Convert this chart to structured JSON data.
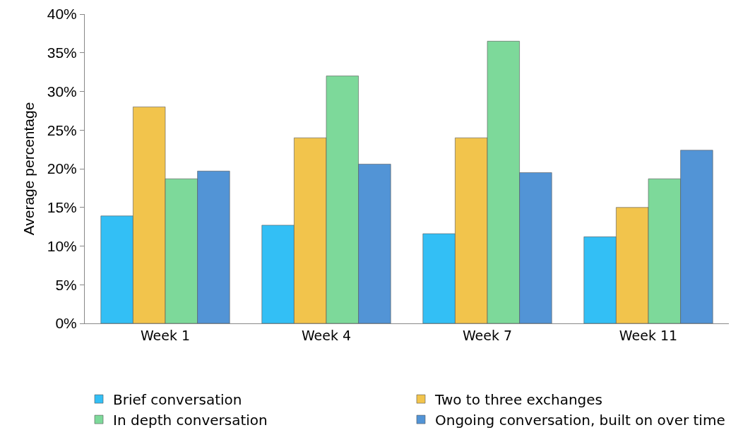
{
  "chart_data": {
    "type": "bar",
    "ylabel": "Average percentage",
    "categories": [
      "Week 1",
      "Week 4",
      "Week 7",
      "Week 11"
    ],
    "series": [
      {
        "name": "Brief conversation",
        "color": "#33bff5",
        "values": [
          13.9,
          12.7,
          11.6,
          11.2
        ]
      },
      {
        "name": "Two to three exchanges",
        "color": "#f2c44c",
        "values": [
          28,
          24,
          24,
          15
        ]
      },
      {
        "name": "In depth conversation",
        "color": "#7dd99a",
        "values": [
          18.7,
          32,
          36.5,
          18.7
        ]
      },
      {
        "name": "Ongoing conversation, built on over time",
        "color": "#5294d6",
        "values": [
          19.7,
          20.6,
          19.5,
          22.4
        ]
      }
    ],
    "ylim": [
      0,
      40
    ],
    "yticks": [
      {
        "value": 0,
        "label": "0%"
      },
      {
        "value": 5,
        "label": "5%"
      },
      {
        "value": 10,
        "label": "10%"
      },
      {
        "value": 15,
        "label": "15%"
      },
      {
        "value": 20,
        "label": "20%"
      },
      {
        "value": 25,
        "label": "25%"
      },
      {
        "value": 30,
        "label": "30%"
      },
      {
        "value": 35,
        "label": "35%"
      },
      {
        "value": 40,
        "label": "40%"
      }
    ],
    "grid": false,
    "legend": "bottom"
  }
}
